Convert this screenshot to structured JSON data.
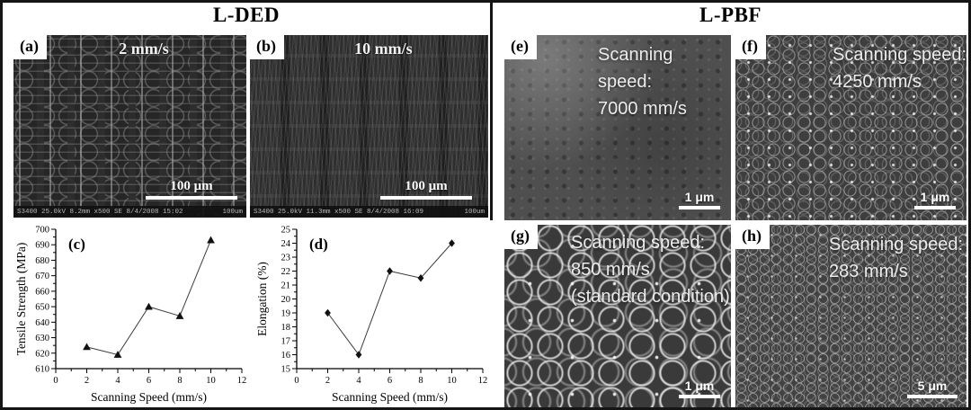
{
  "sections": {
    "left": {
      "title": "L-DED"
    },
    "right": {
      "title": "L-PBF"
    }
  },
  "panels": {
    "a": {
      "label": "(a)",
      "speed": "2 mm/s",
      "scalebar": "100 μm",
      "meta_left": "S3400 25.0kV 8.2mm x500 SE 8/4/2008 15:02",
      "meta_right": "100um"
    },
    "b": {
      "label": "(b)",
      "speed": "10 mm/s",
      "scalebar": "100 μm",
      "meta_left": "S3400 25.0kV 11.3mm x500 SE 8/4/2008 16:09",
      "meta_right": "100um"
    },
    "e": {
      "label": "(e)",
      "caption": "Scanning speed:",
      "speed": "7000 mm/s",
      "scalebar": "1 μm"
    },
    "f": {
      "label": "(f)",
      "caption": "Scanning speed:",
      "speed": "4250 mm/s",
      "scalebar": "1 μm"
    },
    "g": {
      "label": "(g)",
      "caption": "Scanning speed:",
      "speed": "850 mm/s",
      "note": "(standard condition)",
      "scalebar": "1 μm"
    },
    "h": {
      "label": "(h)",
      "caption": "Scanning speed:",
      "speed": "283 mm/s",
      "scalebar": "5 μm"
    }
  },
  "chart_data": [
    {
      "id": "c",
      "panel_label": "(c)",
      "type": "line",
      "x": [
        2,
        4,
        6,
        8,
        10
      ],
      "values": [
        624,
        619,
        650,
        644,
        693
      ],
      "xlabel": "Scanning Speed (mm/s)",
      "ylabel": "Tensile Strength (MPa)",
      "xlim": [
        0,
        12
      ],
      "ylim": [
        610,
        700
      ],
      "xticks": [
        0,
        2,
        4,
        6,
        8,
        10,
        12
      ],
      "yticks": [
        610,
        620,
        630,
        640,
        650,
        660,
        670,
        680,
        690,
        700
      ],
      "marker": "triangle",
      "grid": false,
      "legend": "none"
    },
    {
      "id": "d",
      "panel_label": "(d)",
      "type": "line",
      "x": [
        2,
        4,
        6,
        8,
        10
      ],
      "values": [
        19,
        16,
        22,
        21.5,
        24
      ],
      "xlabel": "Scanning Speed (mm/s)",
      "ylabel": "Elongation (%)",
      "xlim": [
        0,
        12
      ],
      "ylim": [
        15,
        25
      ],
      "xticks": [
        0,
        2,
        4,
        6,
        8,
        10,
        12
      ],
      "yticks": [
        15,
        16,
        17,
        18,
        19,
        20,
        21,
        22,
        23,
        24,
        25
      ],
      "marker": "diamond",
      "grid": false,
      "legend": "none"
    }
  ],
  "colors": {
    "border": "#151515",
    "background": "#ffffff",
    "axis": "#000000",
    "series_line": "#3a3a3a",
    "marker": "#111111"
  }
}
